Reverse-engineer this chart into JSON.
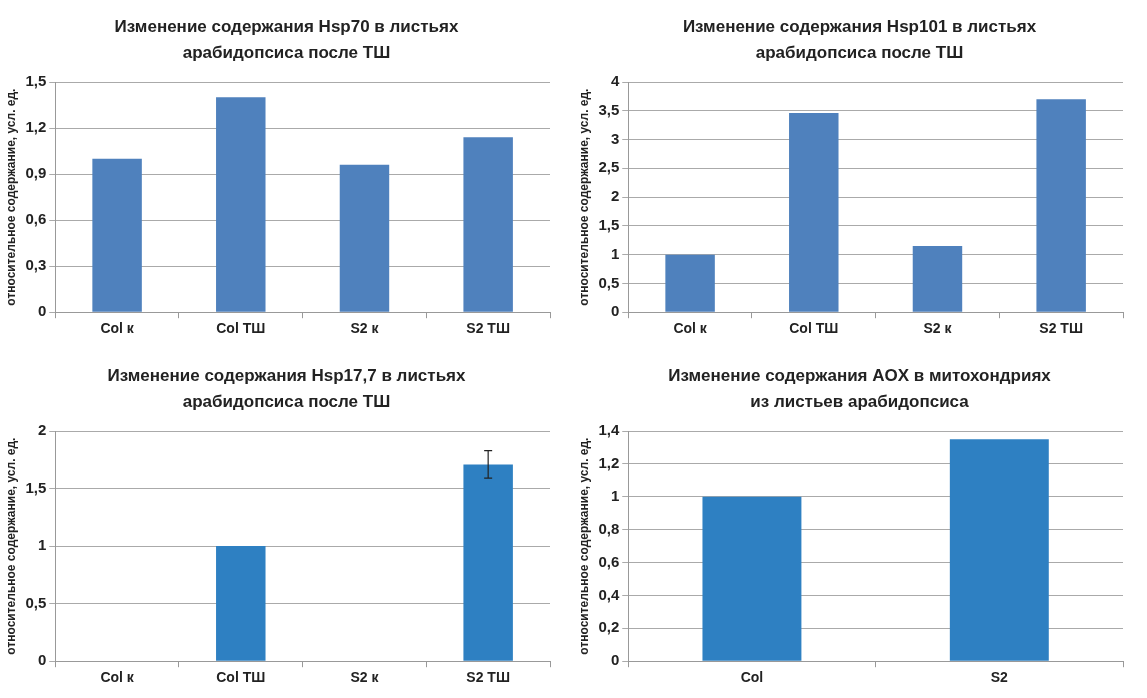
{
  "chart_data": [
    {
      "type": "bar",
      "title": "Изменение содержания Hsp70 в листьях арабидопсиса после ТШ",
      "ylabel": "относительное содержание, усл. ед.",
      "categories": [
        "Col к",
        "Col ТШ",
        "S2 к",
        "S2 ТШ"
      ],
      "values": [
        1.0,
        1.4,
        0.96,
        1.14
      ],
      "color": "#4f81bd",
      "ylim": [
        0,
        1.5
      ],
      "yticks": [
        0,
        {
          "value": 0.3,
          "label": "0,3"
        },
        {
          "value": 0.6,
          "label": "0,6"
        },
        {
          "value": 0.9,
          "label": "0,9"
        },
        {
          "value": 1.2,
          "label": "1,2"
        },
        {
          "value": 1.5,
          "label": "1,5"
        }
      ],
      "grid": "y"
    },
    {
      "type": "bar",
      "title": "Изменение содержания Hsp101 в листьях арабидопсиса после ТШ",
      "ylabel": "относительное содержание, усл. ед.",
      "categories": [
        "Col к",
        "Col ТШ",
        "S2 к",
        "S2 ТШ"
      ],
      "values": [
        1.0,
        3.46,
        1.15,
        3.7
      ],
      "color": "#4f81bd",
      "ylim": [
        0,
        4
      ],
      "yticks": [
        0,
        {
          "value": 0.5,
          "label": "0,5"
        },
        1,
        {
          "value": 1.5,
          "label": "1,5"
        },
        2,
        {
          "value": 2.5,
          "label": "2,5"
        },
        3,
        {
          "value": 3.5,
          "label": "3,5"
        },
        4
      ],
      "grid": "y"
    },
    {
      "type": "bar",
      "title": "Изменение содержания Hsp17,7 в листьях арабидопсиса после ТШ",
      "ylabel": "относительное содержание, усл. ед.",
      "categories": [
        "Col к",
        "Col ТШ",
        "S2 к",
        "S2 ТШ"
      ],
      "values": [
        null,
        1.0,
        null,
        1.71
      ],
      "errors": [
        null,
        null,
        null,
        0.12
      ],
      "color": "#2e80c2",
      "ylim": [
        0,
        2
      ],
      "yticks": [
        0,
        {
          "value": 0.5,
          "label": "0,5"
        },
        1,
        {
          "value": 1.5,
          "label": "1,5"
        },
        2
      ],
      "grid": "y"
    },
    {
      "type": "bar",
      "title": "Изменение содержания AOX в митохондриях из листьев арабидопсиса",
      "ylabel": "относительное содержание, усл. ед.",
      "categories": [
        "Col",
        "S2"
      ],
      "values": [
        1.0,
        1.35
      ],
      "color": "#2e80c2",
      "ylim": [
        0,
        1.4
      ],
      "yticks": [
        0,
        {
          "value": 0.2,
          "label": "0,2"
        },
        {
          "value": 0.4,
          "label": "0,4"
        },
        {
          "value": 0.6,
          "label": "0,6"
        },
        {
          "value": 0.8,
          "label": "0,8"
        },
        1,
        {
          "value": 1.2,
          "label": "1,2"
        },
        {
          "value": 1.4,
          "label": "1,4"
        }
      ],
      "grid": "y"
    }
  ]
}
